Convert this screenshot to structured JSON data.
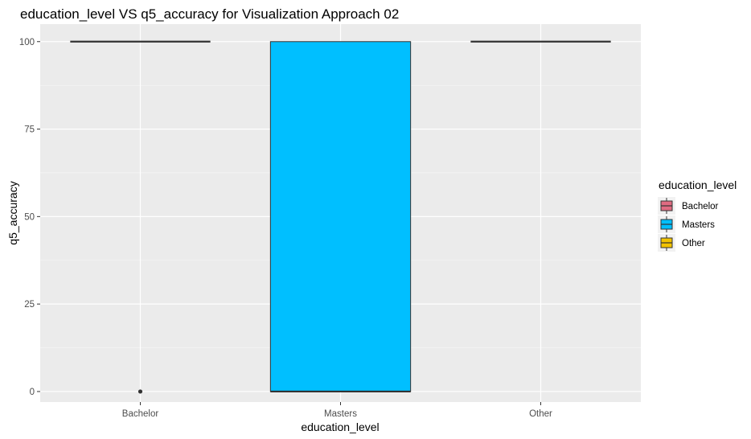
{
  "chart_data": {
    "type": "boxplot",
    "title": "education_level VS q5_accuracy for Visualization Approach 02",
    "xlabel": "education_level",
    "ylabel": "q5_accuracy",
    "categories": [
      "Bachelor",
      "Masters",
      "Other"
    ],
    "ylim": [
      -3,
      105
    ],
    "yticks": [
      0,
      25,
      50,
      75,
      100
    ],
    "grid": true,
    "legend": {
      "title": "education_level",
      "position": "right",
      "entries": [
        {
          "label": "Bachelor",
          "color": "#e06b82"
        },
        {
          "label": "Masters",
          "color": "#00bfff"
        },
        {
          "label": "Other",
          "color": "#f2c300"
        }
      ]
    },
    "series": [
      {
        "category": "Bachelor",
        "q1": 100,
        "median": 100,
        "q3": 100,
        "whisker_low": 100,
        "whisker_high": 100,
        "outliers": [
          0
        ],
        "color": "#e06b82"
      },
      {
        "category": "Masters",
        "q1": 0,
        "median": 0,
        "q3": 100,
        "whisker_low": 0,
        "whisker_high": 100,
        "outliers": [],
        "color": "#00bfff"
      },
      {
        "category": "Other",
        "q1": 100,
        "median": 100,
        "q3": 100,
        "whisker_low": 100,
        "whisker_high": 100,
        "outliers": [],
        "color": "#f2c300"
      }
    ]
  }
}
